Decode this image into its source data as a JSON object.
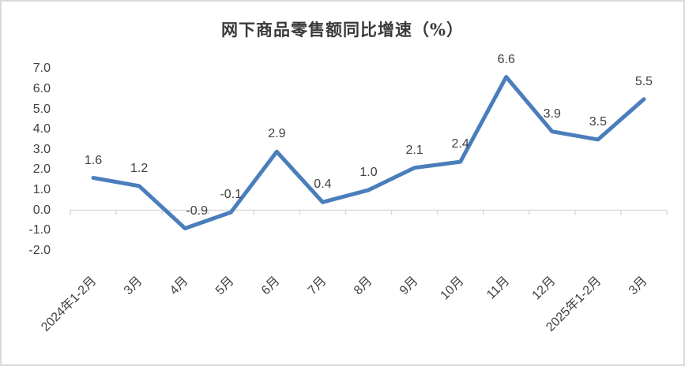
{
  "chart": {
    "title": "网下商品零售额同比增速（%）"
  },
  "chart_data": {
    "type": "line",
    "title": "网下商品零售额同比增速（%）",
    "categories": [
      "2024年1-2月",
      "3月",
      "4月",
      "5月",
      "6月",
      "7月",
      "8月",
      "9月",
      "10月",
      "11月",
      "12月",
      "2025年1-2月",
      "3月"
    ],
    "values": [
      1.6,
      1.2,
      -0.9,
      -0.1,
      2.9,
      0.4,
      1.0,
      2.1,
      2.4,
      6.6,
      3.9,
      3.5,
      5.5
    ],
    "data_label_format": "one_decimal",
    "y_tick_labels": [
      "7.0",
      "6.0",
      "5.0",
      "4.0",
      "3.0",
      "2.0",
      "1.0",
      "0.0",
      "-1.0",
      "-2.0"
    ],
    "ylim": [
      -2.0,
      7.0
    ],
    "xlabel": "",
    "ylabel": "",
    "legend_position": "none",
    "grid": "off",
    "x_label_rotation_deg": -45,
    "label_dx": [
      0,
      0,
      15,
      0,
      0,
      0,
      0,
      0,
      0,
      0,
      0,
      0,
      0
    ],
    "series_color": "#4a7ebb",
    "axis_color": "#d9d9d9",
    "text_color": "#404040",
    "title_color": "#3a3a3a",
    "background_color": "#ffffff",
    "frame_border_color": "#d9d9d9"
  }
}
